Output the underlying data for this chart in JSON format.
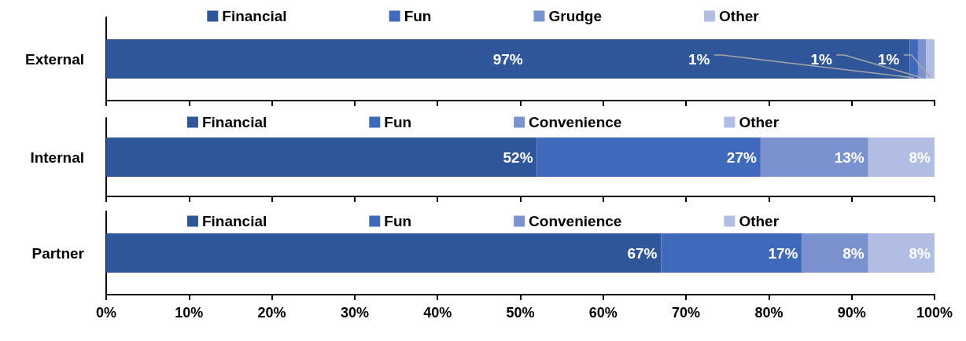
{
  "chart_data": [
    {
      "type": "bar",
      "orientation": "horizontal",
      "stacked": true,
      "categories": [
        "External"
      ],
      "series": [
        {
          "name": "Financial",
          "color": "#30569a",
          "values": [
            97
          ],
          "value_labels": [
            "97%"
          ]
        },
        {
          "name": "Fun",
          "color": "#3f69bb",
          "values": [
            1
          ],
          "value_labels": [
            "1%"
          ]
        },
        {
          "name": "Grudge",
          "color": "#7a92d0",
          "values": [
            1
          ],
          "value_labels": [
            "1%"
          ]
        },
        {
          "name": "Other",
          "color": "#b1bde2",
          "values": [
            1
          ],
          "value_labels": [
            "1%"
          ]
        }
      ],
      "xlim": [
        0,
        100
      ],
      "xticks": [
        {
          "value": 0,
          "label": null
        },
        {
          "value": 10,
          "label": null
        },
        {
          "value": 20,
          "label": null
        },
        {
          "value": 30,
          "label": null
        },
        {
          "value": 40,
          "label": null
        },
        {
          "value": 50,
          "label": null
        },
        {
          "value": 60,
          "label": null
        },
        {
          "value": 70,
          "label": null
        },
        {
          "value": 80,
          "label": null
        },
        {
          "value": 90,
          "label": null
        },
        {
          "value": 100,
          "label": null
        }
      ],
      "tick_labels": "y",
      "legend": "top",
      "grid": false
    },
    {
      "type": "bar",
      "orientation": "horizontal",
      "stacked": true,
      "categories": [
        "Internal"
      ],
      "series": [
        {
          "name": "Financial",
          "color": "#30569a",
          "values": [
            52
          ],
          "value_labels": [
            "52%"
          ]
        },
        {
          "name": "Fun",
          "color": "#3f69bb",
          "values": [
            27
          ],
          "value_labels": [
            "27%"
          ]
        },
        {
          "name": "Convenience",
          "color": "#7a92d0",
          "values": [
            13
          ],
          "value_labels": [
            "13%"
          ]
        },
        {
          "name": "Other",
          "color": "#b1bde2",
          "values": [
            8
          ],
          "value_labels": [
            "8%"
          ]
        }
      ],
      "xlim": [
        0,
        100
      ],
      "xticks": [
        {
          "value": 0,
          "label": null
        },
        {
          "value": 10,
          "label": null
        },
        {
          "value": 20,
          "label": null
        },
        {
          "value": 30,
          "label": null
        },
        {
          "value": 40,
          "label": null
        },
        {
          "value": 50,
          "label": null
        },
        {
          "value": 60,
          "label": null
        },
        {
          "value": 70,
          "label": null
        },
        {
          "value": 80,
          "label": null
        },
        {
          "value": 90,
          "label": null
        },
        {
          "value": 100,
          "label": null
        }
      ],
      "tick_labels": "y",
      "legend": "top",
      "grid": false
    },
    {
      "type": "bar",
      "orientation": "horizontal",
      "stacked": true,
      "categories": [
        "Partner"
      ],
      "series": [
        {
          "name": "Financial",
          "color": "#30569a",
          "values": [
            67
          ],
          "value_labels": [
            "67%"
          ]
        },
        {
          "name": "Fun",
          "color": "#3f69bb",
          "values": [
            17
          ],
          "value_labels": [
            "17%"
          ]
        },
        {
          "name": "Convenience",
          "color": "#7a92d0",
          "values": [
            8
          ],
          "value_labels": [
            "8%"
          ]
        },
        {
          "name": "Other",
          "color": "#b1bde2",
          "values": [
            8
          ],
          "value_labels": [
            "8%"
          ]
        }
      ],
      "xlim": [
        0,
        100
      ],
      "xticks": [
        {
          "value": 0,
          "label": "0%"
        },
        {
          "value": 10,
          "label": "10%"
        },
        {
          "value": 20,
          "label": "20%"
        },
        {
          "value": 30,
          "label": "30%"
        },
        {
          "value": 40,
          "label": "40%"
        },
        {
          "value": 50,
          "label": "50%"
        },
        {
          "value": 60,
          "label": "60%"
        },
        {
          "value": 70,
          "label": "70%"
        },
        {
          "value": 80,
          "label": "80%"
        },
        {
          "value": 90,
          "label": "90%"
        },
        {
          "value": 100,
          "label": "100%"
        }
      ],
      "legend": "top",
      "grid": false
    }
  ]
}
